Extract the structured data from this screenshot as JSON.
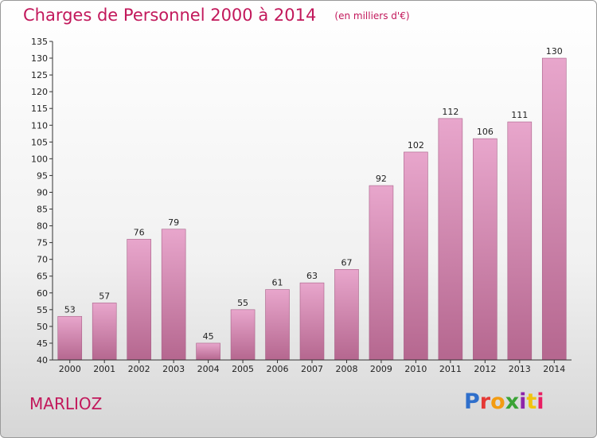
{
  "title": "Charges de Personnel 2000 à 2014",
  "subtitle": "(en milliers d'€)",
  "commune": "MARLIOZ",
  "logo": {
    "text": "Proxiti",
    "colors": [
      "#2f6fcb",
      "#e53935",
      "#f39c12",
      "#3aa335",
      "#8e24aa",
      "#f1c40f",
      "#e91e63"
    ]
  },
  "colors": {
    "title": "#c2185b",
    "bar_top": "#e8a6cc",
    "bar_bottom": "#b5678f",
    "axis": "#333333"
  },
  "chart_data": {
    "type": "bar",
    "categories": [
      "2000",
      "2001",
      "2002",
      "2003",
      "2004",
      "2005",
      "2006",
      "2007",
      "2008",
      "2009",
      "2010",
      "2011",
      "2012",
      "2013",
      "2014"
    ],
    "values": [
      53,
      57,
      76,
      79,
      45,
      55,
      61,
      63,
      67,
      92,
      102,
      112,
      106,
      111,
      130
    ],
    "ylim": [
      40,
      135
    ],
    "yticks": [
      40,
      45,
      50,
      55,
      60,
      65,
      70,
      75,
      80,
      85,
      90,
      95,
      100,
      105,
      110,
      115,
      120,
      125,
      130,
      135
    ],
    "grid": false,
    "xlabel": "",
    "ylabel": ""
  }
}
